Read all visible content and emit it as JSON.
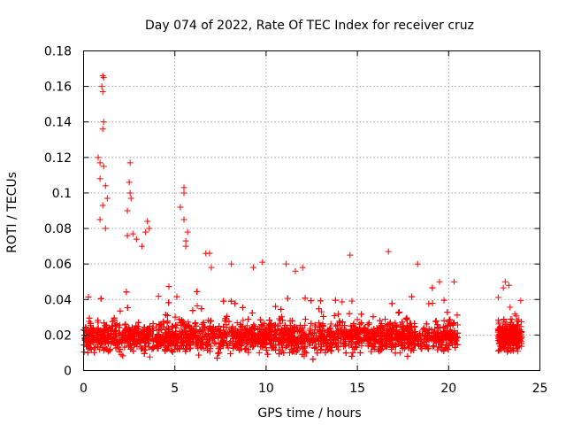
{
  "chart_data": {
    "type": "scatter",
    "title": "Day 074 of 2022, Rate Of TEC Index for receiver cruz",
    "xlabel": "GPS time / hours",
    "ylabel": "ROTI / TECUs",
    "xlim": [
      0,
      25
    ],
    "ylim": [
      0,
      0.18
    ],
    "xticks": [
      "0",
      "5",
      "10",
      "15",
      "20",
      "25"
    ],
    "yticks": [
      "0",
      "0.02",
      "0.04",
      "0.06",
      "0.08",
      "0.1",
      "0.12",
      "0.14",
      "0.16",
      "0.18"
    ],
    "grid": true,
    "marker": "+",
    "color": "#ff0000",
    "series": [
      {
        "segments": [
          {
            "x_start": 0.0,
            "x_end": 20.5,
            "baseline": 0.019,
            "spread": 0.009
          },
          {
            "x_start": 22.7,
            "x_end": 24.0,
            "baseline": 0.019,
            "spread": 0.008
          }
        ],
        "notable_points": [
          {
            "x": 1.05,
            "y": 0.166
          },
          {
            "x": 1.1,
            "y": 0.165
          },
          {
            "x": 1.0,
            "y": 0.16
          },
          {
            "x": 1.05,
            "y": 0.157
          },
          {
            "x": 1.1,
            "y": 0.14
          },
          {
            "x": 1.05,
            "y": 0.136
          },
          {
            "x": 0.8,
            "y": 0.12
          },
          {
            "x": 0.9,
            "y": 0.117
          },
          {
            "x": 1.1,
            "y": 0.115
          },
          {
            "x": 2.55,
            "y": 0.117
          },
          {
            "x": 2.5,
            "y": 0.106
          },
          {
            "x": 2.55,
            "y": 0.1
          },
          {
            "x": 2.6,
            "y": 0.097
          },
          {
            "x": 2.4,
            "y": 0.09
          },
          {
            "x": 0.9,
            "y": 0.108
          },
          {
            "x": 1.2,
            "y": 0.104
          },
          {
            "x": 1.3,
            "y": 0.097
          },
          {
            "x": 1.05,
            "y": 0.093
          },
          {
            "x": 0.9,
            "y": 0.085
          },
          {
            "x": 1.2,
            "y": 0.08
          },
          {
            "x": 5.5,
            "y": 0.103
          },
          {
            "x": 5.5,
            "y": 0.1
          },
          {
            "x": 5.3,
            "y": 0.092
          },
          {
            "x": 5.5,
            "y": 0.085
          },
          {
            "x": 5.7,
            "y": 0.078
          },
          {
            "x": 5.6,
            "y": 0.073
          },
          {
            "x": 5.6,
            "y": 0.07
          },
          {
            "x": 3.5,
            "y": 0.084
          },
          {
            "x": 3.6,
            "y": 0.08
          },
          {
            "x": 3.4,
            "y": 0.078
          },
          {
            "x": 2.4,
            "y": 0.076
          },
          {
            "x": 2.7,
            "y": 0.077
          },
          {
            "x": 2.9,
            "y": 0.074
          },
          {
            "x": 3.2,
            "y": 0.07
          },
          {
            "x": 6.7,
            "y": 0.066
          },
          {
            "x": 6.9,
            "y": 0.066
          },
          {
            "x": 14.6,
            "y": 0.065
          },
          {
            "x": 16.7,
            "y": 0.067
          },
          {
            "x": 7.0,
            "y": 0.058
          },
          {
            "x": 8.1,
            "y": 0.06
          },
          {
            "x": 9.8,
            "y": 0.061
          },
          {
            "x": 11.1,
            "y": 0.06
          },
          {
            "x": 18.3,
            "y": 0.06
          },
          {
            "x": 9.3,
            "y": 0.058
          },
          {
            "x": 11.6,
            "y": 0.056
          },
          {
            "x": 12.0,
            "y": 0.058
          },
          {
            "x": 19.5,
            "y": 0.05
          },
          {
            "x": 20.3,
            "y": 0.05
          },
          {
            "x": 23.1,
            "y": 0.05
          },
          {
            "x": 23.3,
            "y": 0.048
          }
        ]
      }
    ]
  }
}
